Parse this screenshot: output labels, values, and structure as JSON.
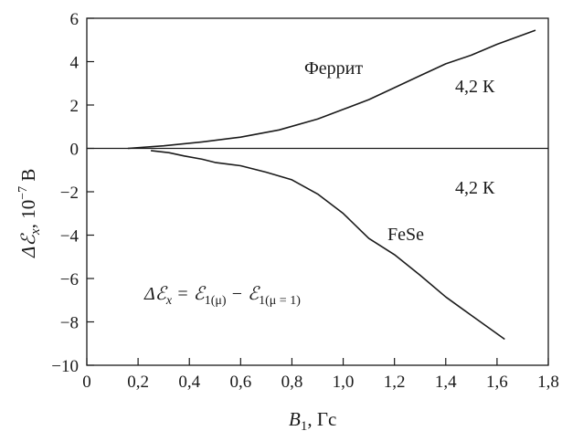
{
  "chart_data": {
    "type": "line",
    "xlabel_main": "B",
    "xlabel_sub": "1",
    "xlabel_unit": ", Гс",
    "ylabel_main": "ΔℰВ",
    "ylabel_delta": "Δℰ",
    "ylabel_sub": "x",
    "ylabel_mid": ", 10",
    "ylabel_exp": "−7",
    "ylabel_unit": " В",
    "xlim": [
      0,
      1.8
    ],
    "ylim": [
      -10,
      6
    ],
    "x_ticks": [
      0,
      0.2,
      0.4,
      0.6,
      0.8,
      1.0,
      1.2,
      1.4,
      1.6,
      1.8
    ],
    "x_tick_labels": [
      "0",
      "0,2",
      "0,4",
      "0,6",
      "0,8",
      "1,0",
      "1,2",
      "1,4",
      "1,6",
      "1,8"
    ],
    "y_ticks": [
      6,
      4,
      2,
      0,
      -2,
      -4,
      -6,
      -8,
      -10
    ],
    "y_tick_labels": [
      "6",
      "4",
      "2",
      "0",
      "−2",
      "−4",
      "−6",
      "−8",
      "−10"
    ],
    "grid": false,
    "series": [
      {
        "name": "Феррит",
        "x": [
          0.16,
          0.3,
          0.45,
          0.6,
          0.75,
          0.9,
          1.0,
          1.1,
          1.2,
          1.3,
          1.4,
          1.5,
          1.6,
          1.75
        ],
        "y": [
          0.0,
          0.12,
          0.3,
          0.52,
          0.85,
          1.35,
          1.8,
          2.25,
          2.8,
          3.35,
          3.9,
          4.3,
          4.8,
          5.45
        ]
      },
      {
        "name": "FeSe",
        "x": [
          0.25,
          0.32,
          0.38,
          0.45,
          0.5,
          0.6,
          0.7,
          0.8,
          0.9,
          1.0,
          1.1,
          1.2,
          1.3,
          1.4,
          1.5,
          1.63
        ],
        "y": [
          -0.1,
          -0.2,
          -0.35,
          -0.5,
          -0.65,
          -0.8,
          -1.1,
          -1.45,
          -2.1,
          -3.0,
          -4.15,
          -4.9,
          -5.85,
          -6.85,
          -7.7,
          -8.8
        ]
      }
    ],
    "annotations": {
      "ferrite_label": "Феррит",
      "ferrite_temp": "4,2 К",
      "fese_label": "FeSe",
      "fese_temp": "4,2 К",
      "formula_lhs": "Δℰ",
      "formula_lhs_sub": "x",
      "formula_eq": " = ℰ",
      "formula_sub1": "1(μ)",
      "formula_minus": " − ℰ",
      "formula_sub2": "1(μ = 1)"
    }
  }
}
